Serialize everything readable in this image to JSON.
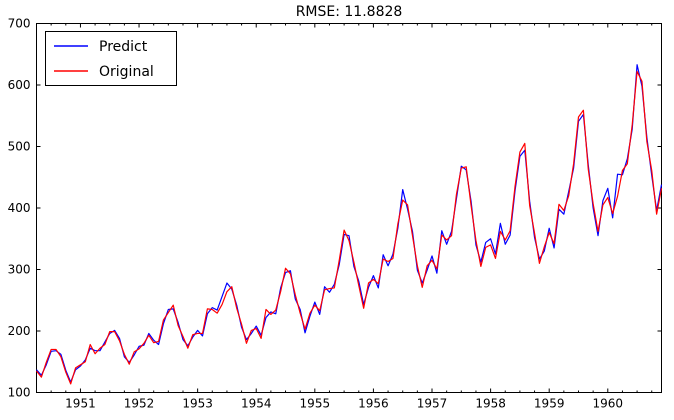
{
  "title": "RMSE: 11.8828",
  "chart_data": {
    "type": "line",
    "title": "RMSE: 11.8828",
    "xlabel": "",
    "ylabel": "",
    "grid": false,
    "x_range_months": [
      "1950-04",
      "1960-12"
    ],
    "x_frequency": "monthly",
    "x_tick_labels": [
      "1951",
      "1952",
      "1953",
      "1954",
      "1955",
      "1956",
      "1957",
      "1958",
      "1959",
      "1960"
    ],
    "x_major_tick_month_indices": [
      9,
      21,
      33,
      45,
      57,
      69,
      81,
      93,
      105,
      117
    ],
    "x_minor_tick_every_months": 3,
    "y_ticks": [
      100,
      200,
      300,
      400,
      500,
      600,
      700
    ],
    "ylim": [
      100,
      700
    ],
    "legend": {
      "position": "upper left",
      "entries": [
        {
          "label": "Predict",
          "color": "#0000ff"
        },
        {
          "label": "Original",
          "color": "#ff0000"
        }
      ]
    },
    "axis_color": "#000000",
    "background_color": "#ffffff",
    "series": [
      {
        "name": "Predict",
        "color": "#0000ff",
        "values": [
          137,
          128,
          145,
          167,
          168,
          162,
          136,
          117,
          137,
          143,
          153,
          172,
          168,
          168,
          182,
          196,
          201,
          188,
          158,
          149,
          161,
          175,
          177,
          196,
          185,
          178,
          212,
          235,
          236,
          214,
          186,
          176,
          190,
          201,
          192,
          228,
          238,
          234,
          256,
          278,
          268,
          242,
          206,
          186,
          196,
          208,
          193,
          222,
          231,
          228,
          270,
          295,
          298,
          252,
          235,
          197,
          224,
          247,
          227,
          272,
          263,
          276,
          308,
          357,
          355,
          305,
          281,
          243,
          271,
          290,
          270,
          324,
          306,
          325,
          367,
          430,
          398,
          362,
          299,
          278,
          299,
          322,
          294,
          363,
          341,
          362,
          415,
          468,
          462,
          411,
          340,
          312,
          344,
          350,
          325,
          375,
          341,
          356,
          428,
          484,
          494,
          411,
          352,
          317,
          330,
          367,
          335,
          398,
          390,
          427,
          465,
          541,
          552,
          470,
          400,
          355,
          412,
          432,
          384,
          455,
          454,
          480,
          528,
          633,
          598,
          515,
          453,
          396,
          438
        ]
      },
      {
        "name": "Original",
        "color": "#ff0000",
        "values": [
          135,
          125,
          149,
          170,
          170,
          158,
          133,
          114,
          140,
          145,
          150,
          178,
          163,
          172,
          178,
          199,
          199,
          184,
          162,
          146,
          166,
          171,
          180,
          193,
          181,
          183,
          218,
          230,
          242,
          209,
          191,
          172,
          194,
          196,
          196,
          236,
          235,
          229,
          243,
          264,
          272,
          237,
          211,
          180,
          201,
          204,
          188,
          235,
          227,
          234,
          264,
          302,
          293,
          259,
          229,
          203,
          229,
          242,
          233,
          267,
          269,
          270,
          315,
          364,
          347,
          312,
          274,
          237,
          278,
          284,
          277,
          317,
          313,
          318,
          374,
          413,
          405,
          355,
          306,
          271,
          306,
          315,
          301,
          356,
          348,
          355,
          422,
          465,
          467,
          404,
          347,
          305,
          336,
          340,
          318,
          362,
          348,
          363,
          435,
          491,
          505,
          404,
          359,
          310,
          337,
          360,
          342,
          406,
          396,
          420,
          472,
          548,
          559,
          463,
          407,
          362,
          405,
          417,
          391,
          419,
          461,
          472,
          535,
          622,
          606,
          508,
          461,
          390,
          432
        ]
      }
    ]
  }
}
